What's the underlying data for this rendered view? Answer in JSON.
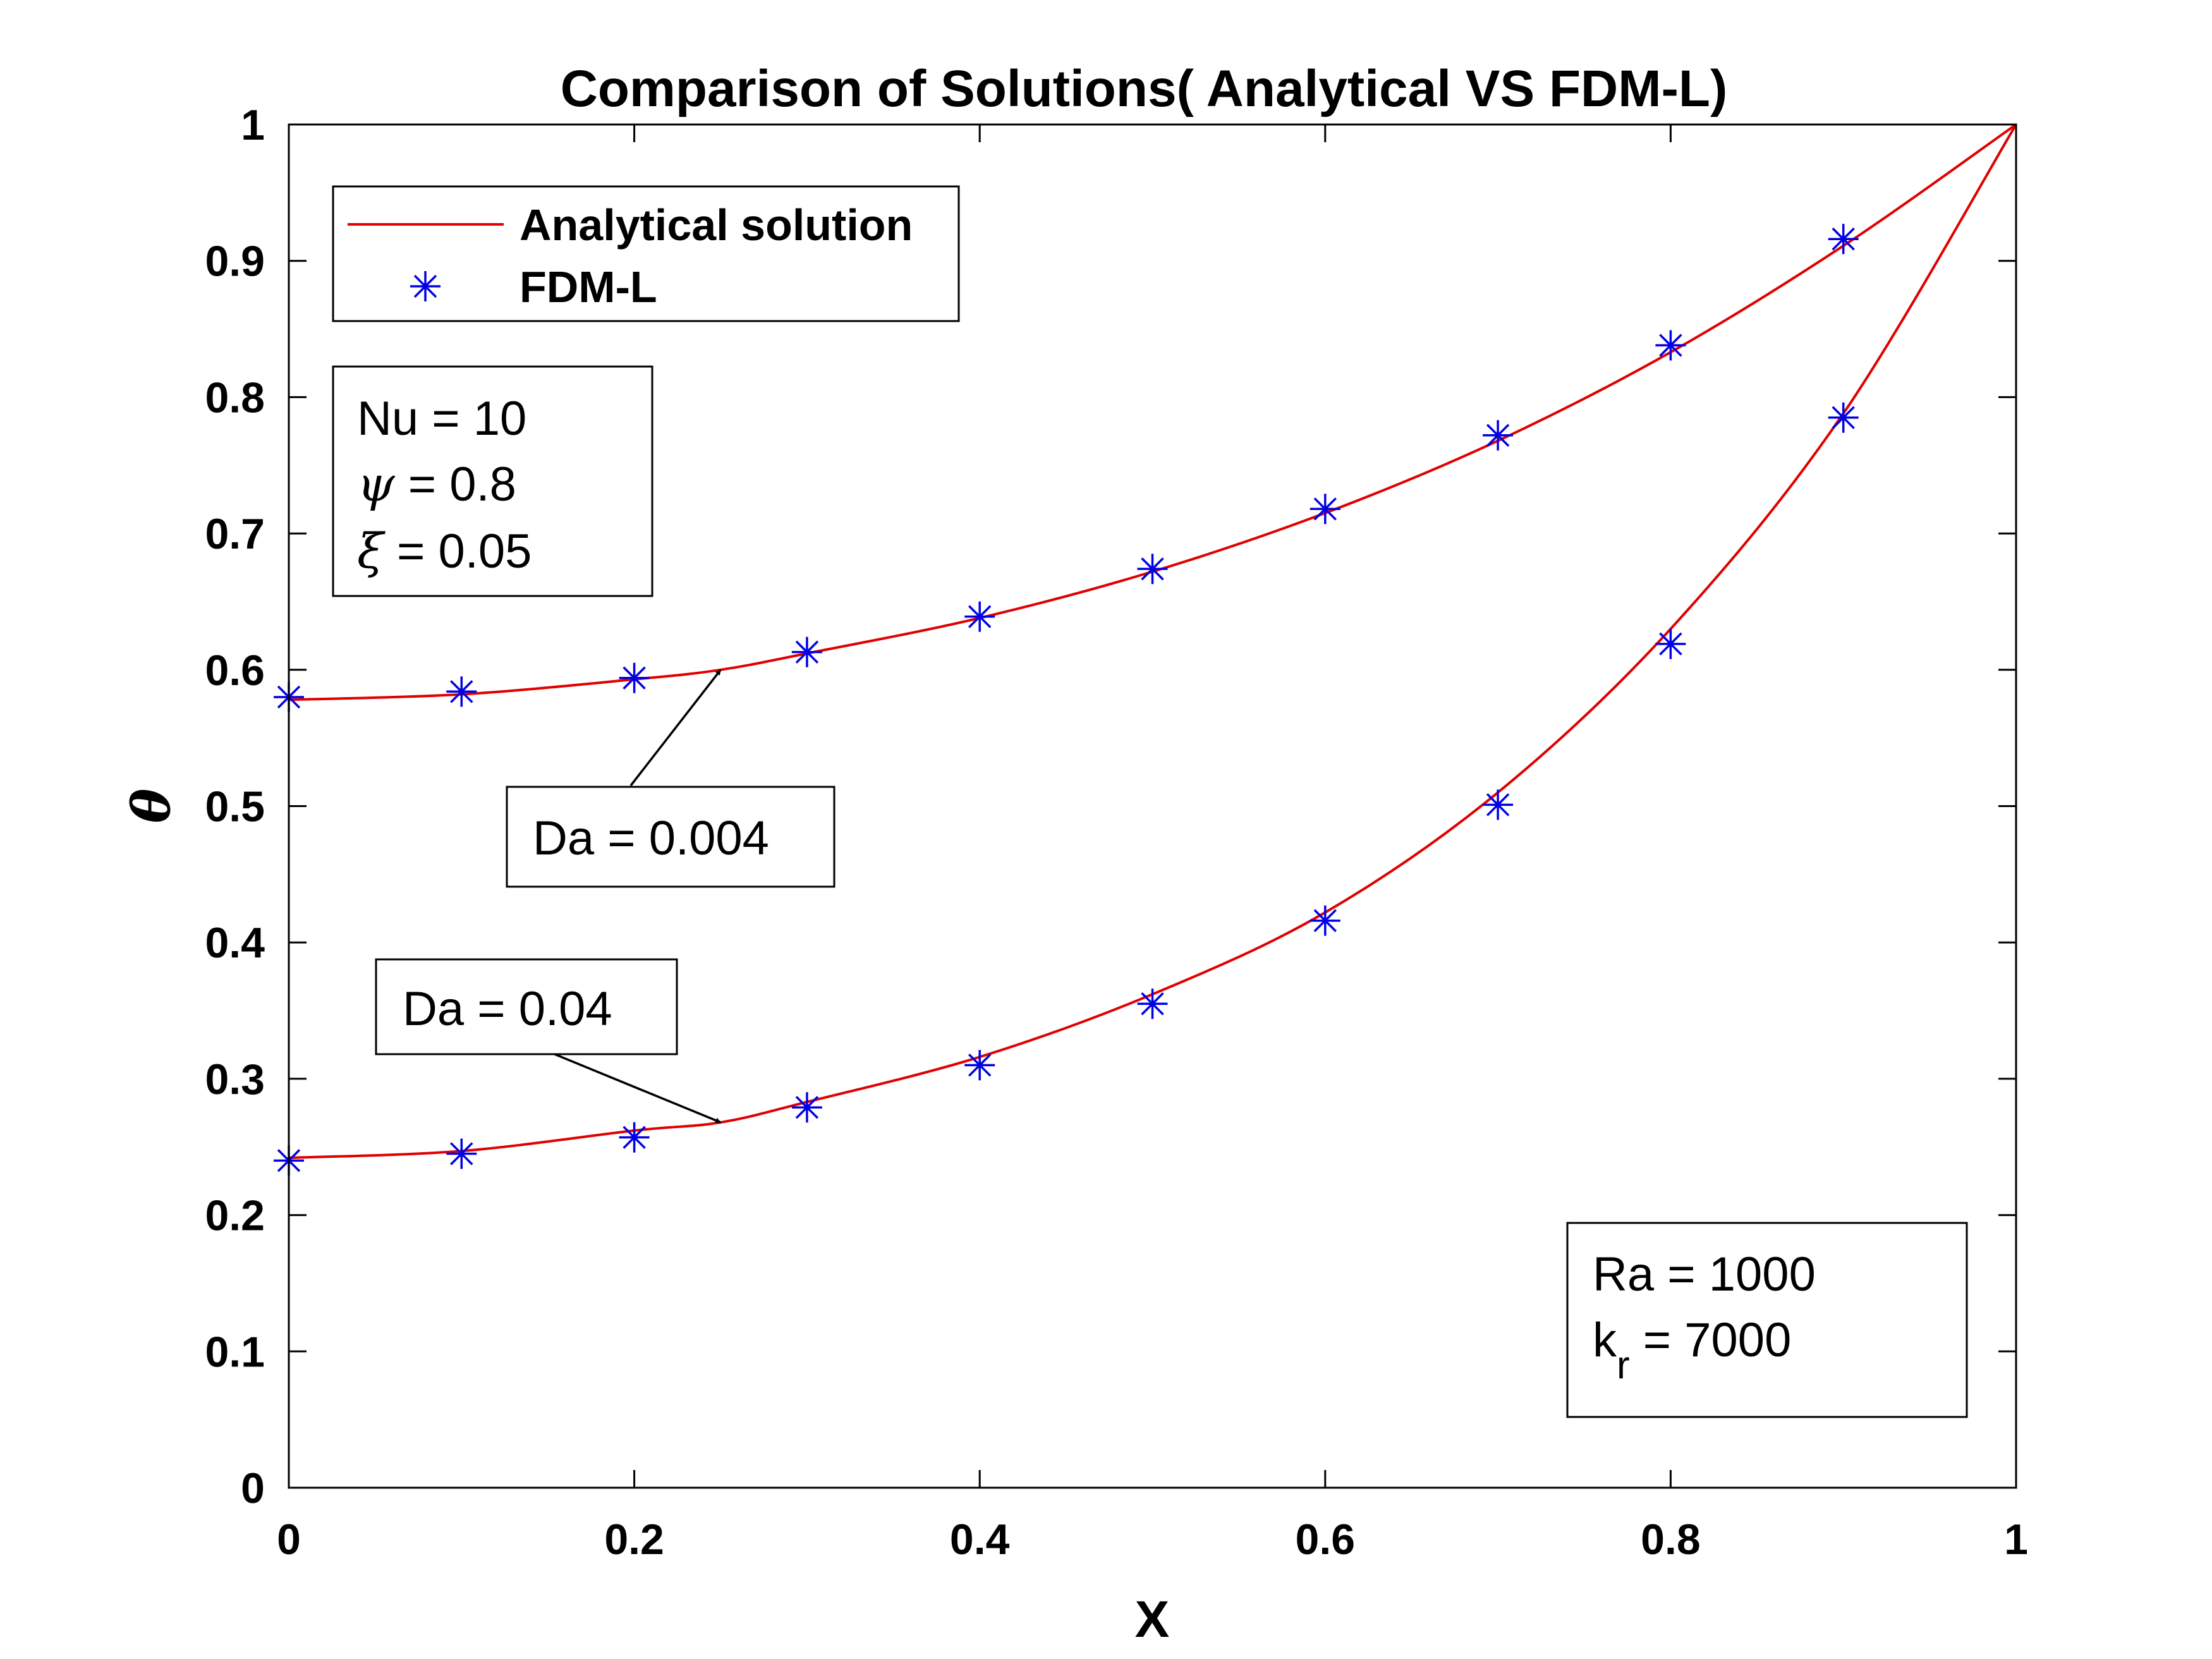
{
  "chart_data": {
    "type": "line",
    "title": "Comparison of Solutions( Analytical VS FDM-L)",
    "xlabel": "X",
    "ylabel": "θ",
    "xlim": [
      0,
      1
    ],
    "ylim": [
      0,
      1
    ],
    "x_ticks": [
      "0",
      "0.2",
      "0.4",
      "0.6",
      "0.8",
      "1"
    ],
    "y_ticks": [
      "0",
      "0.1",
      "0.2",
      "0.3",
      "0.4",
      "0.5",
      "0.6",
      "0.7",
      "0.8",
      "0.9",
      "1"
    ],
    "grid": false,
    "legend_position": "top-left",
    "legend": [
      {
        "label": "Analytical solution",
        "style": "line",
        "color": "#e00000"
      },
      {
        "label": "FDM-L",
        "style": "marker-asterisk",
        "color": "#0000e6"
      }
    ],
    "curves": [
      {
        "case": "Da = 0.004",
        "analytical": {
          "x": [
            0,
            0.1,
            0.2,
            0.25,
            0.3,
            0.4,
            0.5,
            0.6,
            0.7,
            0.8,
            0.9,
            1.0
          ],
          "y": [
            0.578,
            0.582,
            0.593,
            0.6,
            0.612,
            0.638,
            0.672,
            0.715,
            0.768,
            0.833,
            0.911,
            1.0
          ]
        },
        "fdm": {
          "x": [
            0,
            0.1,
            0.2,
            0.3,
            0.4,
            0.5,
            0.6,
            0.7,
            0.8,
            0.9
          ],
          "y": [
            0.58,
            0.584,
            0.594,
            0.613,
            0.639,
            0.674,
            0.718,
            0.772,
            0.838,
            0.916
          ]
        }
      },
      {
        "case": "Da = 0.04",
        "analytical": {
          "x": [
            0,
            0.1,
            0.2,
            0.25,
            0.3,
            0.4,
            0.5,
            0.6,
            0.7,
            0.8,
            0.9,
            1.0
          ],
          "y": [
            0.242,
            0.247,
            0.262,
            0.268,
            0.283,
            0.316,
            0.362,
            0.422,
            0.51,
            0.63,
            0.788,
            1.0
          ]
        },
        "fdm": {
          "x": [
            0,
            0.1,
            0.2,
            0.3,
            0.4,
            0.5,
            0.6,
            0.7,
            0.8,
            0.9
          ],
          "y": [
            0.24,
            0.245,
            0.257,
            0.279,
            0.31,
            0.355,
            0.416,
            0.501,
            0.619,
            0.785
          ]
        }
      }
    ],
    "annotations": {
      "params_box": {
        "line1": "Nu = 10",
        "line2_symbol": "ψ",
        "line2_value": " = 0.8",
        "line3_symbol": "ξ",
        "line3_value": " = 0.05"
      },
      "da_upper": {
        "label": "Da = 0.004",
        "arrow_to": {
          "x": 0.25,
          "y": 0.6
        }
      },
      "da_lower": {
        "label": "Da = 0.04",
        "arrow_to": {
          "x": 0.25,
          "y": 0.268
        }
      },
      "ra_box": {
        "line1": "Ra = 1000",
        "line2_k": "k",
        "line2_sub": "r",
        "line2_value": " = 7000"
      }
    },
    "colors": {
      "analytical": "#e00000",
      "fdm": "#0000e6",
      "axes": "#000000"
    }
  }
}
